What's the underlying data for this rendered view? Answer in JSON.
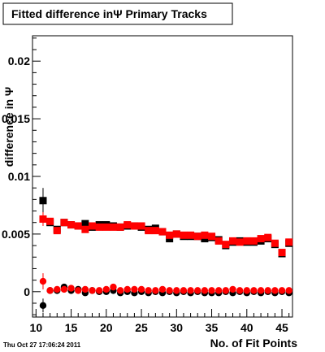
{
  "chart_data": {
    "type": "scatter",
    "title": "Fitted difference inΨ  Primary Tracks",
    "xlabel": "No. of Fit Points",
    "ylabel": "difference in Ψ",
    "timestamp": "Thu Oct 27 17:06:24 2011",
    "xlim": [
      9.5,
      46.5
    ],
    "ylim": [
      -0.0022,
      0.0222
    ],
    "x_ticks": [
      10,
      15,
      20,
      25,
      30,
      35,
      40,
      45
    ],
    "y_ticks": [
      {
        "value": 0,
        "label": "0"
      },
      {
        "value": 0.005,
        "label": "0.005"
      },
      {
        "value": 0.01,
        "label": "0.01"
      },
      {
        "value": 0.015,
        "label": "0.015"
      },
      {
        "value": 0.02,
        "label": "0.02"
      }
    ],
    "grid": false,
    "legend": "none",
    "series": [
      {
        "marker": "square",
        "color": "#000000",
        "points": [
          [
            11,
            0.0079
          ],
          [
            12,
            0.006
          ],
          [
            13,
            0.0054
          ],
          [
            14,
            0.006
          ],
          [
            15,
            0.0058
          ],
          [
            16,
            0.0057
          ],
          [
            17,
            0.0059
          ],
          [
            18,
            0.0056
          ],
          [
            19,
            0.0058
          ],
          [
            20,
            0.0058
          ],
          [
            21,
            0.0057
          ],
          [
            22,
            0.0056
          ],
          [
            23,
            0.0057
          ],
          [
            24,
            0.0057
          ],
          [
            25,
            0.0056
          ],
          [
            26,
            0.0054
          ],
          [
            27,
            0.0055
          ],
          [
            28,
            0.0052
          ],
          [
            29,
            0.0046
          ],
          [
            30,
            0.005
          ],
          [
            31,
            0.0048
          ],
          [
            32,
            0.0048
          ],
          [
            33,
            0.0048
          ],
          [
            34,
            0.0046
          ],
          [
            35,
            0.0047
          ],
          [
            36,
            0.0045
          ],
          [
            37,
            0.004
          ],
          [
            38,
            0.0043
          ],
          [
            39,
            0.0044
          ],
          [
            40,
            0.0043
          ],
          [
            41,
            0.0043
          ],
          [
            42,
            0.0044
          ],
          [
            43,
            0.0046
          ],
          [
            44,
            0.0041
          ],
          [
            45,
            0.0033
          ],
          [
            46,
            0.0042
          ]
        ],
        "errors": [
          [
            11,
            0.0011
          ]
        ]
      },
      {
        "marker": "square",
        "color": "#ff0000",
        "points": [
          [
            11,
            0.0063
          ],
          [
            12,
            0.0061
          ],
          [
            13,
            0.0053
          ],
          [
            14,
            0.006
          ],
          [
            15,
            0.0058
          ],
          [
            16,
            0.0057
          ],
          [
            17,
            0.0054
          ],
          [
            18,
            0.0057
          ],
          [
            19,
            0.0056
          ],
          [
            20,
            0.0056
          ],
          [
            21,
            0.0056
          ],
          [
            22,
            0.0056
          ],
          [
            23,
            0.0058
          ],
          [
            24,
            0.0057
          ],
          [
            25,
            0.0057
          ],
          [
            26,
            0.0053
          ],
          [
            27,
            0.0053
          ],
          [
            28,
            0.0052
          ],
          [
            29,
            0.0049
          ],
          [
            30,
            0.005
          ],
          [
            31,
            0.0049
          ],
          [
            32,
            0.0049
          ],
          [
            33,
            0.0048
          ],
          [
            34,
            0.0049
          ],
          [
            35,
            0.0048
          ],
          [
            36,
            0.0044
          ],
          [
            37,
            0.0041
          ],
          [
            38,
            0.0044
          ],
          [
            39,
            0.0043
          ],
          [
            40,
            0.0044
          ],
          [
            41,
            0.0044
          ],
          [
            42,
            0.0046
          ],
          [
            43,
            0.0047
          ],
          [
            44,
            0.0042
          ],
          [
            45,
            0.0034
          ],
          [
            46,
            0.0043
          ]
        ],
        "errors": [
          [
            11,
            0.0006
          ]
        ]
      },
      {
        "marker": "circle",
        "color": "#000000",
        "points": [
          [
            11,
            -0.0012
          ],
          [
            12,
            0.0001
          ],
          [
            13,
            0.0001
          ],
          [
            14,
            0.0004
          ],
          [
            15,
            0.0001
          ],
          [
            16,
            0.0002
          ],
          [
            17,
            -0.0001
          ],
          [
            18,
            0.0001
          ],
          [
            19,
            0.0
          ],
          [
            20,
            0.0
          ],
          [
            21,
            0.0001
          ],
          [
            22,
            -0.0001
          ],
          [
            23,
            0.0
          ],
          [
            24,
            -0.0001
          ],
          [
            25,
            0.0
          ],
          [
            26,
            -0.0001
          ],
          [
            27,
            0.0
          ],
          [
            28,
            -0.0001
          ],
          [
            29,
            0.0
          ],
          [
            30,
            -0.0001
          ],
          [
            31,
            0.0
          ],
          [
            32,
            -0.0001
          ],
          [
            33,
            0.0
          ],
          [
            34,
            -0.0001
          ],
          [
            35,
            -0.0001
          ],
          [
            36,
            -0.0001
          ],
          [
            37,
            0.0
          ],
          [
            38,
            -0.0001
          ],
          [
            39,
            0.0
          ],
          [
            40,
            -0.0001
          ],
          [
            41,
            0.0
          ],
          [
            42,
            -0.0001
          ],
          [
            43,
            0.0
          ],
          [
            44,
            -0.0001
          ],
          [
            45,
            0.0
          ],
          [
            46,
            -0.0001
          ]
        ],
        "errors": [
          [
            11,
            0.0006
          ]
        ]
      },
      {
        "marker": "circle",
        "color": "#ff0000",
        "points": [
          [
            11,
            0.0009
          ],
          [
            12,
            0.0001
          ],
          [
            13,
            0.0002
          ],
          [
            14,
            0.0002
          ],
          [
            15,
            0.0003
          ],
          [
            16,
            0.0001
          ],
          [
            17,
            0.0002
          ],
          [
            18,
            0.0001
          ],
          [
            19,
            0.0001
          ],
          [
            20,
            0.0002
          ],
          [
            21,
            0.0004
          ],
          [
            22,
            0.0001
          ],
          [
            23,
            0.0002
          ],
          [
            24,
            0.0002
          ],
          [
            25,
            0.0002
          ],
          [
            26,
            0.0001
          ],
          [
            27,
            0.0001
          ],
          [
            28,
            0.0002
          ],
          [
            29,
            0.0001
          ],
          [
            30,
            0.0001
          ],
          [
            31,
            0.0001
          ],
          [
            32,
            0.0001
          ],
          [
            33,
            0.0001
          ],
          [
            34,
            0.0001
          ],
          [
            35,
            0.0001
          ],
          [
            36,
            0.0001
          ],
          [
            37,
            0.0001
          ],
          [
            38,
            0.0002
          ],
          [
            39,
            0.0001
          ],
          [
            40,
            0.0001
          ],
          [
            41,
            0.0001
          ],
          [
            42,
            0.0001
          ],
          [
            43,
            0.0001
          ],
          [
            44,
            0.0001
          ],
          [
            45,
            0.0001
          ],
          [
            46,
            0.0001
          ]
        ],
        "errors": [
          [
            11,
            0.0007
          ]
        ]
      }
    ]
  }
}
